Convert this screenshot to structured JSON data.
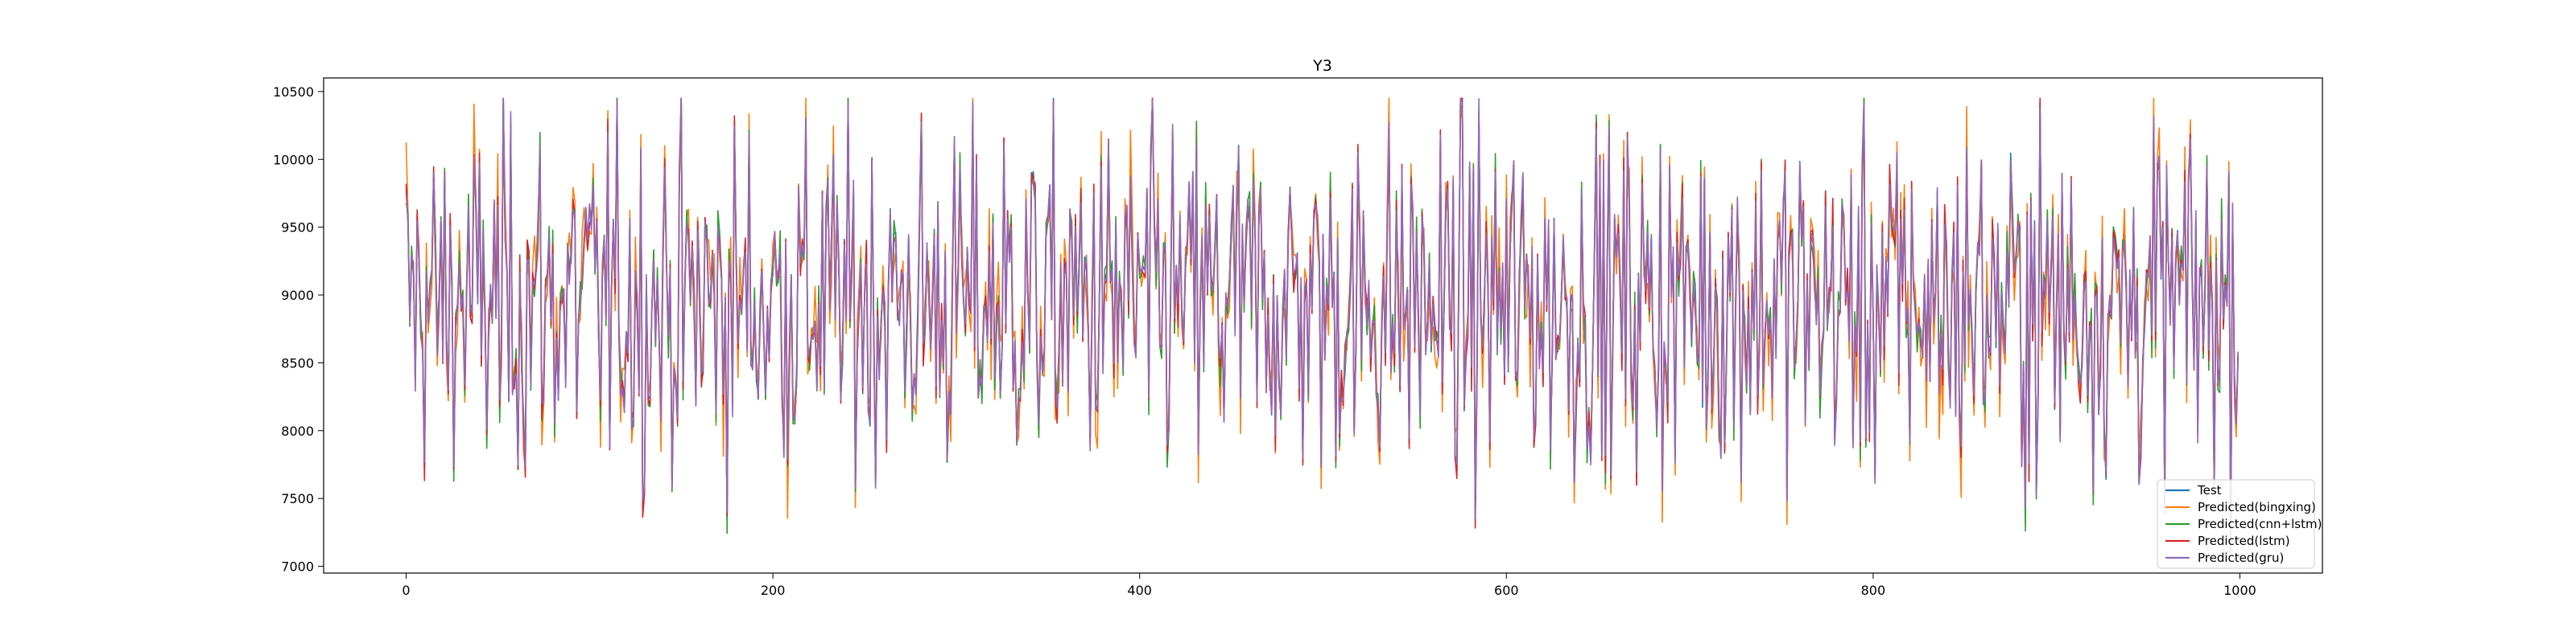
{
  "chart_data": {
    "type": "line",
    "title": "Y3",
    "xlabel": "",
    "ylabel": "",
    "xlim": [
      -45,
      1045
    ],
    "ylim": [
      6950,
      10600
    ],
    "x_ticks": [
      0,
      200,
      400,
      600,
      800,
      1000
    ],
    "y_ticks": [
      7000,
      7500,
      8000,
      8500,
      9000,
      9500,
      10000,
      10500
    ],
    "n_points": 1000,
    "value_range": [
      7100,
      10450
    ],
    "grid": false,
    "legend_position": "lower-right",
    "series": [
      {
        "name": "Test",
        "color": "#1f77b4",
        "role": "actual"
      },
      {
        "name": "Predicted(bingxing)",
        "color": "#ff7f0e",
        "role": "prediction"
      },
      {
        "name": "Predicted(cnn+lstm)",
        "color": "#2ca02c",
        "role": "prediction"
      },
      {
        "name": "Predicted(lstm)",
        "color": "#d62728",
        "role": "prediction"
      },
      {
        "name": "Predicted(gru)",
        "color": "#9467bd",
        "role": "prediction"
      }
    ]
  }
}
